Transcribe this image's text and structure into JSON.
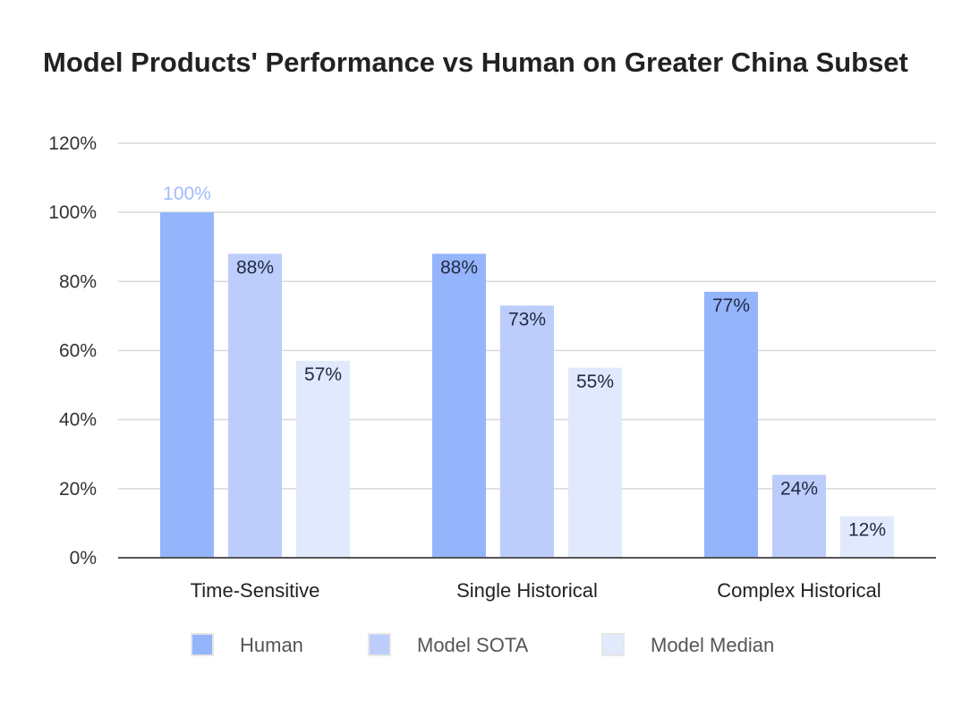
{
  "chart_data": {
    "type": "bar",
    "title": "Model Products' Performance vs Human on Greater China Subset",
    "xlabel": "",
    "ylabel": "",
    "ylim": [
      0,
      120
    ],
    "yticks": [
      "0%",
      "20%",
      "40%",
      "60%",
      "80%",
      "100%",
      "120%"
    ],
    "categories": [
      "Time-Sensitive",
      "Single Historical",
      "Complex Historical"
    ],
    "series": [
      {
        "name": "Human",
        "values": [
          100,
          88,
          77
        ],
        "labels": [
          "100%",
          "88%",
          "77%"
        ],
        "color": "#94b4fb"
      },
      {
        "name": "Model SOTA",
        "values": [
          88,
          73,
          24
        ],
        "labels": [
          "88%",
          "73%",
          "24%"
        ],
        "color": "#bccdfb"
      },
      {
        "name": "Model Median",
        "values": [
          57,
          55,
          12
        ],
        "labels": [
          "57%",
          "55%",
          "12%"
        ],
        "color": "#e1e9fc"
      }
    ],
    "grid": true,
    "legend_position": "bottom"
  }
}
